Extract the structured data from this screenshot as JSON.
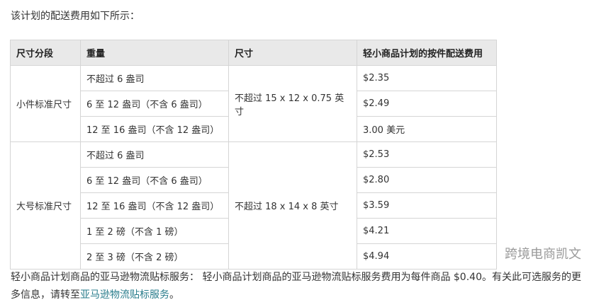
{
  "intro": "该计划的配送费用如下所示：",
  "table": {
    "headers": [
      "尺寸分段",
      "重量",
      "尺寸",
      "轻小商品计划的按件配送费用"
    ],
    "groups": [
      {
        "tier": "小件标准尺寸",
        "dimensions": "不超过 15 x 12 x 0.75 英寸",
        "rows": [
          {
            "weight": "不超过 6 盎司",
            "fee": "$2.35"
          },
          {
            "weight": "6 至 12 盎司（不含 6 盎司）",
            "fee": "$2.49"
          },
          {
            "weight": "12 至 16 盎司（不含 12 盎司）",
            "fee": "3.00 美元"
          }
        ]
      },
      {
        "tier": "大号标准尺寸",
        "dimensions": "不超过 18 x 14 x 8 英寸",
        "rows": [
          {
            "weight": "不超过 6 盎司",
            "fee": "$2.53"
          },
          {
            "weight": "6 至 12 盎司（不含 6 盎司）",
            "fee": "$2.80"
          },
          {
            "weight": "12 至 16 盎司（不含 12 盎司）",
            "fee": "$3.59"
          },
          {
            "weight": "1 至 2 磅（不含 1 磅）",
            "fee": "$4.21"
          },
          {
            "weight": "2 至 3 磅（不含 2 磅）",
            "fee": "$4.94"
          }
        ]
      }
    ]
  },
  "footer": {
    "text1": "轻小商品计划商品的亚马逊物流贴标服务： 轻小商品计划商品的亚马逊物流贴标服务费用为每件商品 $0.40。有关此可选服务的更多信息，请转至",
    "link": "亚马逊物流贴标服务",
    "text2": "。"
  },
  "watermark": "跨境电商凯文"
}
